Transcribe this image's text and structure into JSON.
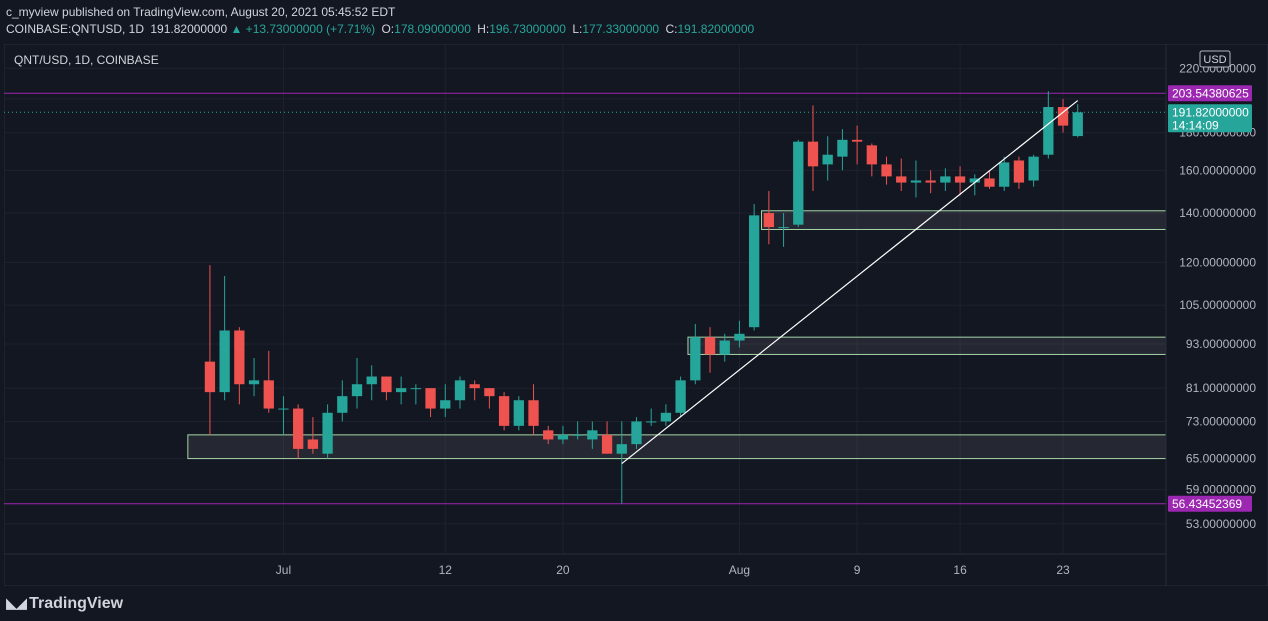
{
  "header": {
    "publisher": "c_myview",
    "published_text": "published on TradingView.com, August 20, 2021 05:45:52 EDT"
  },
  "ohlc_bar": {
    "symbol": "COINBASE:QNTUSD, 1D",
    "price": "191.82000000",
    "change": "▲ +13.73000000 (+7.71%)",
    "o_label": "O:",
    "o": "178.09000000",
    "h_label": "H:",
    "h": "196.73000000",
    "l_label": "L:",
    "l": "177.33000000",
    "c_label": "C:",
    "c": "191.82000000"
  },
  "legend": {
    "title": "QNT/USD, 1D, COINBASE"
  },
  "price_axis": {
    "currency": "USD",
    "current_price_label": "191.82000000",
    "countdown": "14:14:09",
    "line_label_upper": "203.54380625",
    "line_label_lower": "56.43452369"
  },
  "footer": {
    "brand": "TradingView"
  },
  "colors": {
    "background": "#131722",
    "up": "#26a69a",
    "down": "#ef5350",
    "horizontal_line": "#9c27b0",
    "zone_border": "#a5d6a7",
    "trendline": "#ffffff"
  },
  "chart_data": {
    "type": "candlestick",
    "title": "QNT/USD, 1D, COINBASE",
    "y_scale": "log",
    "ylim": [
      49,
      228
    ],
    "y_ticks": [
      53,
      59,
      65,
      73,
      81,
      93,
      105,
      120,
      140,
      160,
      180,
      200,
      220
    ],
    "y_tick_labels": [
      "53.00000000",
      "59.00000000",
      "65.00000000",
      "73.00000000",
      "81.00000000",
      "93.00000000",
      "105.00000000",
      "120.00000000",
      "140.00000000",
      "160.00000000",
      "180.00000000",
      "",
      "220.00000000"
    ],
    "x_range": [
      "2021-06-12",
      "2021-08-30"
    ],
    "x_ticks": [
      {
        "date": "2021-07-01",
        "label": "Jul"
      },
      {
        "date": "2021-07-12",
        "label": "12"
      },
      {
        "date": "2021-07-20",
        "label": "20"
      },
      {
        "date": "2021-08-01",
        "label": "Aug"
      },
      {
        "date": "2021-08-09",
        "label": "9"
      },
      {
        "date": "2021-08-16",
        "label": "16"
      },
      {
        "date": "2021-08-23",
        "label": "23"
      }
    ],
    "candles": [
      {
        "d": "2021-06-26",
        "o": 88,
        "h": 119,
        "l": 70,
        "c": 80
      },
      {
        "d": "2021-06-27",
        "o": 80,
        "h": 115,
        "l": 78,
        "c": 97
      },
      {
        "d": "2021-06-28",
        "o": 97,
        "h": 98,
        "l": 77,
        "c": 82
      },
      {
        "d": "2021-06-29",
        "o": 82,
        "h": 89,
        "l": 79,
        "c": 83
      },
      {
        "d": "2021-06-30",
        "o": 83,
        "h": 91,
        "l": 75,
        "c": 76
      },
      {
        "d": "2021-07-01",
        "o": 76,
        "h": 79,
        "l": 70,
        "c": 76
      },
      {
        "d": "2021-07-02",
        "o": 76,
        "h": 77,
        "l": 65,
        "c": 67
      },
      {
        "d": "2021-07-03",
        "o": 69,
        "h": 74,
        "l": 66,
        "c": 67
      },
      {
        "d": "2021-07-04",
        "o": 66,
        "h": 77,
        "l": 65,
        "c": 75
      },
      {
        "d": "2021-07-05",
        "o": 75,
        "h": 83,
        "l": 73,
        "c": 79
      },
      {
        "d": "2021-07-06",
        "o": 79,
        "h": 89,
        "l": 76,
        "c": 82
      },
      {
        "d": "2021-07-07",
        "o": 82,
        "h": 87,
        "l": 78,
        "c": 84
      },
      {
        "d": "2021-07-08",
        "o": 84,
        "h": 84,
        "l": 78,
        "c": 80
      },
      {
        "d": "2021-07-09",
        "o": 80,
        "h": 84,
        "l": 77,
        "c": 81
      },
      {
        "d": "2021-07-10",
        "o": 81,
        "h": 82,
        "l": 77,
        "c": 81
      },
      {
        "d": "2021-07-11",
        "o": 81,
        "h": 81,
        "l": 74,
        "c": 76
      },
      {
        "d": "2021-07-12",
        "o": 76,
        "h": 82,
        "l": 74,
        "c": 78
      },
      {
        "d": "2021-07-13",
        "o": 78,
        "h": 84,
        "l": 76,
        "c": 83
      },
      {
        "d": "2021-07-14",
        "o": 82,
        "h": 83,
        "l": 78,
        "c": 81
      },
      {
        "d": "2021-07-15",
        "o": 81,
        "h": 81,
        "l": 76,
        "c": 79
      },
      {
        "d": "2021-07-16",
        "o": 79,
        "h": 80,
        "l": 71,
        "c": 72
      },
      {
        "d": "2021-07-17",
        "o": 72,
        "h": 79,
        "l": 71,
        "c": 78
      },
      {
        "d": "2021-07-18",
        "o": 78,
        "h": 82,
        "l": 70,
        "c": 72
      },
      {
        "d": "2021-07-19",
        "o": 71,
        "h": 72,
        "l": 68,
        "c": 69
      },
      {
        "d": "2021-07-20",
        "o": 69,
        "h": 72,
        "l": 68,
        "c": 70
      },
      {
        "d": "2021-07-21",
        "o": 70,
        "h": 73,
        "l": 69,
        "c": 70
      },
      {
        "d": "2021-07-22",
        "o": 69,
        "h": 73,
        "l": 67,
        "c": 71
      },
      {
        "d": "2021-07-23",
        "o": 70,
        "h": 73,
        "l": 66,
        "c": 66
      },
      {
        "d": "2021-07-24",
        "o": 66,
        "h": 73,
        "l": 56.5,
        "c": 68
      },
      {
        "d": "2021-07-25",
        "o": 68,
        "h": 74,
        "l": 67,
        "c": 73
      },
      {
        "d": "2021-07-26",
        "o": 73,
        "h": 76,
        "l": 72,
        "c": 73
      },
      {
        "d": "2021-07-27",
        "o": 73,
        "h": 77,
        "l": 72,
        "c": 75
      },
      {
        "d": "2021-07-28",
        "o": 75,
        "h": 84,
        "l": 74,
        "c": 83
      },
      {
        "d": "2021-07-29",
        "o": 83,
        "h": 99,
        "l": 82,
        "c": 95
      },
      {
        "d": "2021-07-30",
        "o": 95,
        "h": 98,
        "l": 85,
        "c": 90
      },
      {
        "d": "2021-07-31",
        "o": 90,
        "h": 96,
        "l": 88,
        "c": 94
      },
      {
        "d": "2021-08-01",
        "o": 94,
        "h": 100,
        "l": 92,
        "c": 96
      },
      {
        "d": "2021-08-02",
        "o": 98,
        "h": 144,
        "l": 97,
        "c": 139
      },
      {
        "d": "2021-08-03",
        "o": 140,
        "h": 150,
        "l": 127,
        "c": 134
      },
      {
        "d": "2021-08-04",
        "o": 134,
        "h": 140,
        "l": 126,
        "c": 134
      },
      {
        "d": "2021-08-05",
        "o": 135,
        "h": 176,
        "l": 134,
        "c": 175
      },
      {
        "d": "2021-08-06",
        "o": 175,
        "h": 196,
        "l": 150,
        "c": 162
      },
      {
        "d": "2021-08-07",
        "o": 163,
        "h": 178,
        "l": 155,
        "c": 168
      },
      {
        "d": "2021-08-08",
        "o": 167,
        "h": 182,
        "l": 160,
        "c": 176
      },
      {
        "d": "2021-08-09",
        "o": 176,
        "h": 184,
        "l": 163,
        "c": 175
      },
      {
        "d": "2021-08-10",
        "o": 173,
        "h": 174,
        "l": 157,
        "c": 163
      },
      {
        "d": "2021-08-11",
        "o": 163,
        "h": 167,
        "l": 153,
        "c": 157
      },
      {
        "d": "2021-08-12",
        "o": 157,
        "h": 166,
        "l": 150,
        "c": 154
      },
      {
        "d": "2021-08-13",
        "o": 154,
        "h": 165,
        "l": 147,
        "c": 155
      },
      {
        "d": "2021-08-14",
        "o": 155,
        "h": 160,
        "l": 149,
        "c": 154
      },
      {
        "d": "2021-08-15",
        "o": 154,
        "h": 161,
        "l": 150,
        "c": 157
      },
      {
        "d": "2021-08-16",
        "o": 157,
        "h": 162,
        "l": 148,
        "c": 154
      },
      {
        "d": "2021-08-17",
        "o": 154,
        "h": 158,
        "l": 148,
        "c": 156
      },
      {
        "d": "2021-08-18",
        "o": 156,
        "h": 160,
        "l": 151,
        "c": 152
      },
      {
        "d": "2021-08-19",
        "o": 152,
        "h": 167,
        "l": 150,
        "c": 164
      },
      {
        "d": "2021-08-20",
        "o": 165,
        "h": 167,
        "l": 151,
        "c": 154
      },
      {
        "d": "2021-08-21",
        "o": 155,
        "h": 168,
        "l": 152,
        "c": 167
      },
      {
        "d": "2021-08-22",
        "o": 168,
        "h": 205,
        "l": 166,
        "c": 195
      },
      {
        "d": "2021-08-23",
        "o": 195,
        "h": 200,
        "l": 180,
        "c": 184
      },
      {
        "d": "2021-08-24",
        "o": 178.09,
        "h": 196.73,
        "l": 177.33,
        "c": 191.82
      }
    ],
    "horizontal_lines": [
      203.54380625,
      56.43452369
    ],
    "current_price": 191.82,
    "zones": [
      {
        "start": "2021-08-03",
        "end": "2021-08-30",
        "top": 141,
        "bottom": 133
      },
      {
        "start": "2021-07-29",
        "end": "2021-08-30",
        "top": 95,
        "bottom": 90
      },
      {
        "start": "2021-06-25",
        "end": "2021-08-30",
        "top": 70,
        "bottom": 65
      }
    ],
    "trendline": {
      "start": {
        "d": "2021-07-24",
        "v": 64
      },
      "end": {
        "d": "2021-08-24",
        "v": 199
      }
    }
  }
}
